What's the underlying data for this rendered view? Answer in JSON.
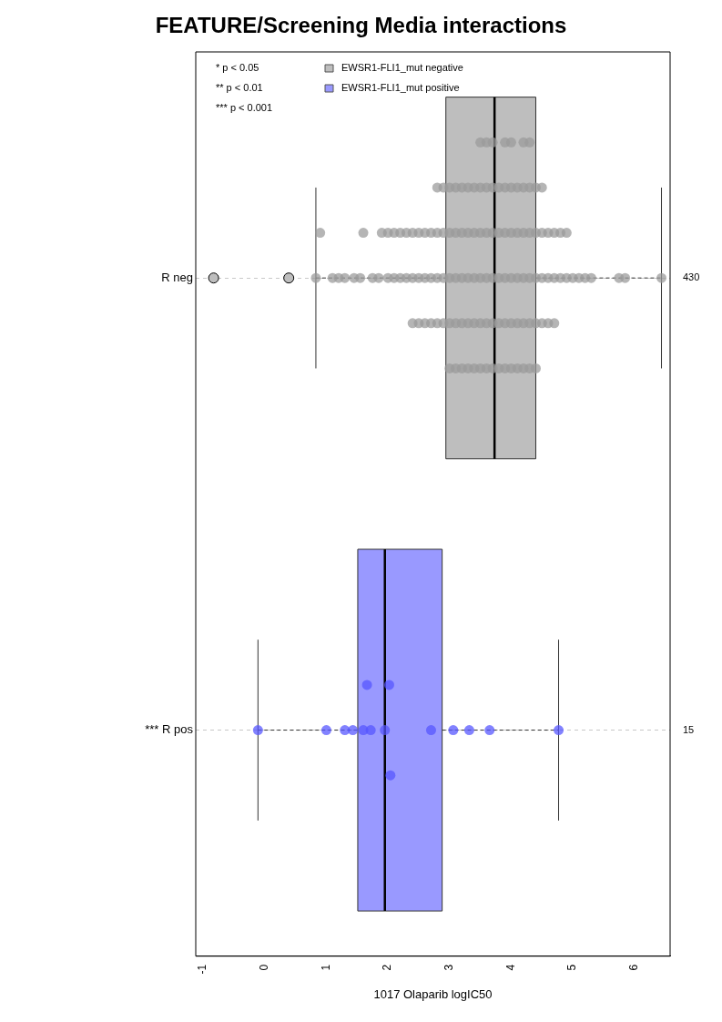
{
  "chart_data": {
    "type": "box",
    "title": "FEATURE/Screening Media interactions",
    "xlabel": "1017 Olaparib logIC50",
    "orientation": "horizontal",
    "categories": [
      "R neg",
      "*** R pos"
    ],
    "xlim": [
      -1.12,
      6.58
    ],
    "xticks": [
      -1,
      0,
      1,
      2,
      3,
      4,
      5,
      6
    ],
    "grid": "y",
    "legend": "top left",
    "marker": "circle",
    "y2_categories": [
      "430",
      "15"
    ],
    "annotations": [
      "* p < 0.05",
      "** p < 0.01",
      "*** p < 0.001"
    ],
    "series": [
      {
        "name": "EWSR1-FLI1_mut negative",
        "color": "#bebebe",
        "boxes": [
          {
            "low": 0.83,
            "q1": 2.94,
            "median": 3.73,
            "q3": 4.4,
            "high": 6.44,
            "outliers": [
              -0.83,
              0.39
            ]
          },
          null
        ]
      },
      {
        "name": "EWSR1-FLI1_mut positive",
        "color": "#9999ff",
        "boxes": [
          null,
          {
            "low": -0.11,
            "q1": 1.51,
            "median": 1.95,
            "q3": 2.88,
            "high": 4.77
          }
        ]
      },
      {
        "type": "scatter",
        "color": "#9a9a9a",
        "x": [
          "R neg",
          "R neg",
          "R neg",
          "R neg",
          "R neg",
          "R neg",
          "R neg",
          "R neg",
          "R neg",
          "R neg",
          "R neg",
          "R neg",
          "R neg",
          "R neg",
          "R neg",
          "R neg",
          "R neg",
          "R neg",
          "R neg",
          "R neg",
          "R neg",
          "R neg",
          "R neg",
          "R neg",
          "R neg",
          "R neg",
          "R neg",
          "R neg",
          "R neg",
          "R neg",
          "R neg",
          "R neg",
          "R neg",
          "R neg",
          "R neg",
          "R neg",
          "R neg",
          "R neg",
          "R neg",
          "R neg",
          "R neg",
          "R neg",
          "R neg",
          "R neg",
          "R neg",
          "R neg",
          "R neg",
          "R neg",
          "R neg",
          "R neg",
          "R neg",
          "R neg",
          "R neg",
          "R neg",
          "R neg",
          "R neg",
          "R neg",
          "R neg",
          "R neg",
          "R neg",
          "R neg",
          "R neg",
          "R neg",
          "R neg",
          "R neg",
          "R neg",
          "R neg",
          "R neg",
          "R neg",
          "R neg",
          "R neg",
          "R neg",
          "R neg",
          "R neg",
          "R neg",
          "R neg",
          "R neg",
          "R neg",
          "R neg",
          "R neg",
          "R neg",
          "R neg",
          "R neg",
          "R neg",
          "R neg",
          "R neg",
          "R neg",
          "R neg",
          "R neg",
          "R neg",
          "R neg",
          "R neg",
          "R neg",
          "R neg",
          "R neg",
          "R neg",
          "R neg",
          "R neg",
          "R neg",
          "R neg",
          "R neg",
          "R neg",
          "R neg",
          "R neg",
          "R neg",
          "R neg",
          "R neg",
          "R neg",
          "R neg",
          "R neg",
          "R neg",
          "R neg",
          "R neg",
          "R neg",
          "R neg",
          "R neg",
          "R neg",
          "R neg",
          "R neg",
          "R neg",
          "R neg",
          "R neg",
          "R neg",
          "R neg",
          "R neg",
          "R neg",
          "R neg",
          "R neg",
          "R neg",
          "R neg",
          "R neg",
          "R neg",
          "R neg",
          "R neg",
          "R neg",
          "R neg",
          "R neg",
          "R neg",
          "R neg",
          "R neg",
          "R neg",
          "R neg"
        ],
        "values": [
          0.83,
          0.9,
          1.1,
          1.2,
          1.3,
          1.45,
          1.55,
          1.6,
          1.75,
          1.85,
          1.9,
          2.0,
          2.0,
          2.1,
          2.1,
          2.2,
          2.2,
          2.3,
          2.3,
          2.4,
          2.4,
          2.4,
          2.5,
          2.5,
          2.5,
          2.6,
          2.6,
          2.6,
          2.7,
          2.7,
          2.7,
          2.8,
          2.8,
          2.8,
          2.8,
          2.9,
          2.9,
          2.9,
          2.9,
          3.0,
          3.0,
          3.0,
          3.0,
          3.0,
          3.1,
          3.1,
          3.1,
          3.1,
          3.1,
          3.2,
          3.2,
          3.2,
          3.2,
          3.2,
          3.3,
          3.3,
          3.3,
          3.3,
          3.3,
          3.4,
          3.4,
          3.4,
          3.4,
          3.4,
          3.5,
          3.5,
          3.5,
          3.5,
          3.5,
          3.5,
          3.6,
          3.6,
          3.6,
          3.6,
          3.6,
          3.6,
          3.7,
          3.7,
          3.7,
          3.7,
          3.7,
          3.7,
          3.8,
          3.8,
          3.8,
          3.8,
          3.8,
          3.9,
          3.9,
          3.9,
          3.9,
          3.9,
          3.9,
          4.0,
          4.0,
          4.0,
          4.0,
          4.0,
          4.0,
          4.1,
          4.1,
          4.1,
          4.1,
          4.1,
          4.2,
          4.2,
          4.2,
          4.2,
          4.2,
          4.2,
          4.3,
          4.3,
          4.3,
          4.3,
          4.3,
          4.3,
          4.4,
          4.4,
          4.4,
          4.4,
          4.4,
          4.5,
          4.5,
          4.5,
          4.5,
          4.6,
          4.6,
          4.6,
          4.7,
          4.7,
          4.7,
          4.8,
          4.8,
          4.9,
          4.9,
          5.0,
          5.1,
          5.2,
          5.3,
          5.75,
          5.85,
          6.44
        ]
      },
      {
        "type": "scatter",
        "color": "#5555ff",
        "x": [
          "*** R pos",
          "*** R pos",
          "*** R pos",
          "*** R pos",
          "*** R pos",
          "*** R pos",
          "*** R pos",
          "*** R pos",
          "*** R pos",
          "*** R pos",
          "*** R pos",
          "*** R pos",
          "*** R pos",
          "*** R pos",
          "*** R pos"
        ],
        "values": [
          -0.11,
          1.0,
          1.3,
          1.43,
          1.6,
          1.66,
          1.72,
          1.95,
          2.02,
          2.04,
          2.7,
          3.06,
          3.32,
          3.65,
          4.77
        ]
      }
    ]
  }
}
